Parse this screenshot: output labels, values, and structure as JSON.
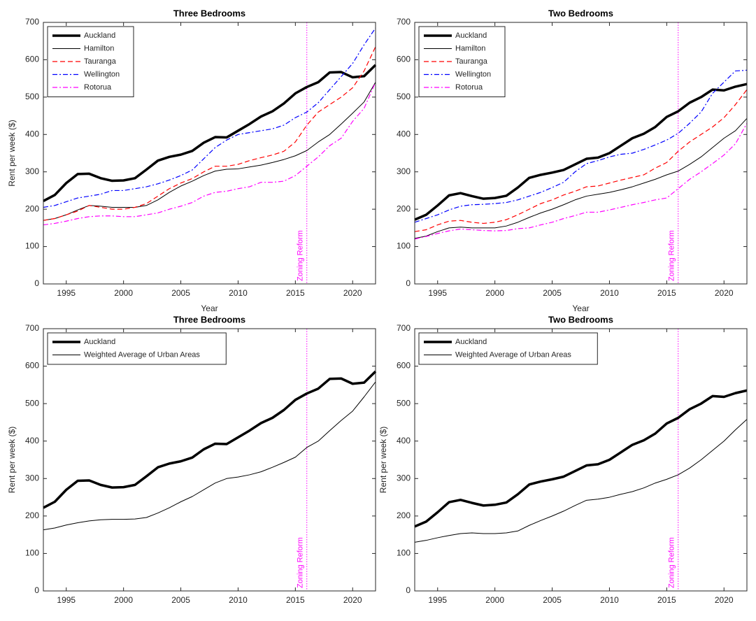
{
  "chart_data": [
    {
      "type": "line",
      "title": "Three Bedrooms",
      "xlabel": "Year",
      "ylabel": "Rent per week ($)",
      "x": [
        1993,
        1994,
        1995,
        1996,
        1997,
        1998,
        1999,
        2000,
        2001,
        2002,
        2003,
        2004,
        2005,
        2006,
        2007,
        2008,
        2009,
        2010,
        2011,
        2012,
        2013,
        2014,
        2015,
        2016,
        2017,
        2018,
        2019,
        2020,
        2021,
        2022
      ],
      "xlim": [
        1993,
        2022
      ],
      "xticks": [
        1995,
        2000,
        2005,
        2010,
        2015,
        2020
      ],
      "ylim": [
        0,
        700
      ],
      "yticks": [
        0,
        100,
        200,
        300,
        400,
        500,
        600,
        700
      ],
      "grid": false,
      "legend": "upper left",
      "vline": {
        "x": 2016,
        "label": "Zoning Reform",
        "color": "#ff00ff"
      },
      "series": [
        {
          "name": "Auckland",
          "color": "#000000",
          "style": "thick",
          "values": [
            222,
            238,
            270,
            294,
            295,
            283,
            276,
            277,
            283,
            306,
            330,
            340,
            346,
            356,
            378,
            393,
            392,
            410,
            428,
            448,
            462,
            483,
            510,
            527,
            540,
            566,
            567,
            553,
            556,
            586
          ]
        },
        {
          "name": "Hamilton",
          "color": "#000000",
          "style": "solid",
          "values": [
            170,
            175,
            185,
            198,
            210,
            208,
            205,
            205,
            205,
            210,
            225,
            245,
            262,
            275,
            290,
            302,
            307,
            308,
            313,
            318,
            325,
            333,
            343,
            357,
            380,
            400,
            428,
            457,
            487,
            540
          ]
        },
        {
          "name": "Tauranga",
          "color": "#ff0000",
          "style": "dashed",
          "values": [
            170,
            175,
            185,
            195,
            210,
            205,
            200,
            200,
            205,
            215,
            235,
            255,
            270,
            282,
            300,
            315,
            315,
            320,
            330,
            338,
            345,
            355,
            380,
            425,
            460,
            480,
            500,
            525,
            570,
            635
          ]
        },
        {
          "name": "Wellington",
          "color": "#0000ff",
          "style": "dashdot",
          "values": [
            205,
            210,
            220,
            230,
            235,
            240,
            250,
            250,
            255,
            260,
            268,
            278,
            290,
            305,
            335,
            365,
            385,
            400,
            405,
            410,
            415,
            425,
            445,
            460,
            485,
            520,
            555,
            590,
            640,
            685
          ]
        },
        {
          "name": "Rotorua",
          "color": "#ff00ff",
          "style": "dashdot",
          "values": [
            158,
            162,
            168,
            175,
            180,
            182,
            182,
            180,
            180,
            185,
            190,
            200,
            208,
            218,
            235,
            245,
            248,
            255,
            260,
            272,
            272,
            275,
            290,
            315,
            340,
            370,
            390,
            435,
            470,
            540
          ]
        }
      ]
    },
    {
      "type": "line",
      "title": "Two Bedrooms",
      "xlabel": "Year",
      "x": [
        1993,
        1994,
        1995,
        1996,
        1997,
        1998,
        1999,
        2000,
        2001,
        2002,
        2003,
        2004,
        2005,
        2006,
        2007,
        2008,
        2009,
        2010,
        2011,
        2012,
        2013,
        2014,
        2015,
        2016,
        2017,
        2018,
        2019,
        2020,
        2021,
        2022
      ],
      "xlim": [
        1993,
        2022
      ],
      "xticks": [
        1995,
        2000,
        2005,
        2010,
        2015,
        2020
      ],
      "ylim": [
        0,
        700
      ],
      "yticks": [
        0,
        100,
        200,
        300,
        400,
        500,
        600,
        700
      ],
      "grid": false,
      "legend": "upper left",
      "vline": {
        "x": 2016,
        "label": "Zoning Reform",
        "color": "#ff00ff"
      },
      "series": [
        {
          "name": "Auckland",
          "color": "#000000",
          "style": "thick",
          "values": [
            172,
            185,
            210,
            237,
            243,
            235,
            228,
            230,
            236,
            258,
            284,
            292,
            298,
            305,
            320,
            335,
            338,
            350,
            370,
            390,
            402,
            420,
            447,
            462,
            485,
            500,
            520,
            518,
            528,
            535
          ]
        },
        {
          "name": "Hamilton",
          "color": "#000000",
          "style": "solid",
          "values": [
            122,
            128,
            140,
            150,
            152,
            150,
            150,
            150,
            155,
            165,
            178,
            190,
            200,
            212,
            225,
            235,
            240,
            245,
            252,
            260,
            270,
            280,
            292,
            302,
            320,
            340,
            365,
            390,
            410,
            443
          ]
        },
        {
          "name": "Tauranga",
          "color": "#ff0000",
          "style": "dashed",
          "values": [
            140,
            145,
            158,
            168,
            170,
            165,
            162,
            165,
            172,
            185,
            200,
            215,
            225,
            238,
            248,
            260,
            262,
            270,
            278,
            285,
            292,
            310,
            325,
            355,
            380,
            400,
            420,
            445,
            480,
            520
          ]
        },
        {
          "name": "Wellington",
          "color": "#0000ff",
          "style": "dashdot",
          "values": [
            165,
            175,
            185,
            198,
            208,
            212,
            213,
            215,
            218,
            225,
            235,
            245,
            258,
            272,
            300,
            322,
            330,
            340,
            347,
            350,
            360,
            372,
            385,
            403,
            430,
            460,
            510,
            540,
            570,
            572
          ]
        },
        {
          "name": "Rotorua",
          "color": "#ff00ff",
          "style": "dashdot",
          "values": [
            120,
            127,
            135,
            142,
            147,
            145,
            143,
            142,
            143,
            148,
            150,
            158,
            165,
            175,
            183,
            192,
            192,
            198,
            205,
            212,
            218,
            225,
            230,
            255,
            280,
            300,
            322,
            345,
            375,
            430
          ]
        }
      ]
    },
    {
      "type": "line",
      "title": "Three Bedrooms",
      "ylabel": "Rent per week ($)",
      "x": [
        1993,
        1994,
        1995,
        1996,
        1997,
        1998,
        1999,
        2000,
        2001,
        2002,
        2003,
        2004,
        2005,
        2006,
        2007,
        2008,
        2009,
        2010,
        2011,
        2012,
        2013,
        2014,
        2015,
        2016,
        2017,
        2018,
        2019,
        2020,
        2021,
        2022
      ],
      "xlim": [
        1993,
        2022
      ],
      "xticks": [
        1995,
        2000,
        2005,
        2010,
        2015,
        2020
      ],
      "ylim": [
        0,
        700
      ],
      "yticks": [
        0,
        100,
        200,
        300,
        400,
        500,
        600,
        700
      ],
      "grid": false,
      "legend": "upper left",
      "vline": {
        "x": 2016,
        "label": "Zoning Reform",
        "color": "#ff00ff"
      },
      "series": [
        {
          "name": "Auckland",
          "color": "#000000",
          "style": "thick",
          "values": [
            222,
            238,
            270,
            294,
            295,
            283,
            276,
            277,
            283,
            306,
            330,
            340,
            346,
            356,
            378,
            393,
            392,
            410,
            428,
            448,
            462,
            483,
            510,
            527,
            540,
            566,
            567,
            553,
            556,
            586
          ]
        },
        {
          "name": "Weighted Average of Urban Areas",
          "color": "#000000",
          "style": "solid",
          "values": [
            163,
            168,
            176,
            182,
            187,
            190,
            191,
            191,
            192,
            196,
            208,
            222,
            238,
            252,
            270,
            288,
            300,
            304,
            310,
            318,
            330,
            343,
            357,
            383,
            400,
            428,
            455,
            480,
            518,
            558
          ]
        }
      ]
    },
    {
      "type": "line",
      "title": "Two Bedrooms",
      "ylabel": "Rent per week ($)",
      "x": [
        1993,
        1994,
        1995,
        1996,
        1997,
        1998,
        1999,
        2000,
        2001,
        2002,
        2003,
        2004,
        2005,
        2006,
        2007,
        2008,
        2009,
        2010,
        2011,
        2012,
        2013,
        2014,
        2015,
        2016,
        2017,
        2018,
        2019,
        2020,
        2021,
        2022
      ],
      "xlim": [
        1993,
        2022
      ],
      "xticks": [
        1995,
        2000,
        2005,
        2010,
        2015,
        2020
      ],
      "ylim": [
        0,
        700
      ],
      "yticks": [
        0,
        100,
        200,
        300,
        400,
        500,
        600,
        700
      ],
      "grid": false,
      "legend": "upper left",
      "vline": {
        "x": 2016,
        "label": "Zoning Reform",
        "color": "#ff00ff"
      },
      "series": [
        {
          "name": "Auckland",
          "color": "#000000",
          "style": "thick",
          "values": [
            172,
            185,
            210,
            237,
            243,
            235,
            228,
            230,
            236,
            258,
            284,
            292,
            298,
            305,
            320,
            335,
            338,
            350,
            370,
            390,
            402,
            420,
            447,
            462,
            485,
            500,
            520,
            518,
            528,
            535
          ]
        },
        {
          "name": "Weighted Average of Urban Areas",
          "color": "#000000",
          "style": "solid",
          "values": [
            130,
            135,
            142,
            148,
            153,
            155,
            153,
            153,
            155,
            160,
            175,
            188,
            200,
            213,
            228,
            242,
            245,
            250,
            258,
            265,
            275,
            288,
            298,
            310,
            328,
            350,
            375,
            400,
            430,
            458
          ]
        }
      ]
    }
  ]
}
